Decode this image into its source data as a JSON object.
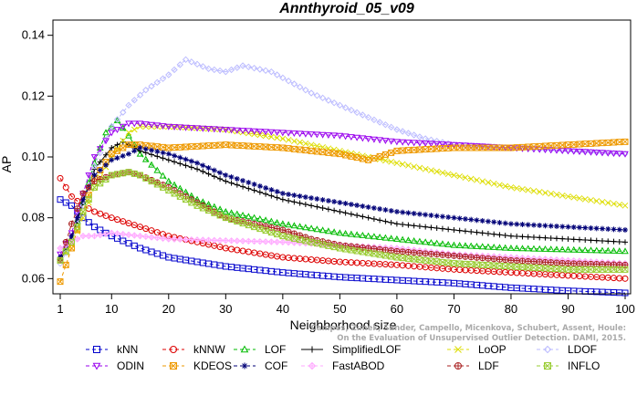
{
  "chart_data": {
    "type": "line",
    "title": "Annthyroid_05_v09",
    "xlabel": "Neighborhood size",
    "ylabel": "AP",
    "xlim": [
      1,
      100
    ],
    "ylim": [
      0.055,
      0.145
    ],
    "x_ticks": [
      1,
      10,
      20,
      30,
      40,
      50,
      60,
      70,
      80,
      90,
      100
    ],
    "y_ticks": [
      0.06,
      0.08,
      0.1,
      0.12,
      0.14
    ],
    "watermark": [
      "Campos, Zimek, Sander, Campello, Micenkova, Schubert, Assent, Houle:",
      "On the Evaluation of Unsupervised Outlier Detection. DAMI, 2015."
    ],
    "series": [
      {
        "name": "kNN",
        "color": "#0000cc",
        "marker": "square",
        "dash": "4,3",
        "points": [
          [
            1,
            0.086
          ],
          [
            3,
            0.084
          ],
          [
            5,
            0.08
          ],
          [
            7,
            0.077
          ],
          [
            10,
            0.074
          ],
          [
            15,
            0.07
          ],
          [
            20,
            0.067
          ],
          [
            30,
            0.064
          ],
          [
            40,
            0.062
          ],
          [
            50,
            0.0605
          ],
          [
            60,
            0.0595
          ],
          [
            70,
            0.0585
          ],
          [
            80,
            0.057
          ],
          [
            90,
            0.056
          ],
          [
            100,
            0.0553
          ]
        ]
      },
      {
        "name": "kNNW",
        "color": "#dd0000",
        "marker": "circle",
        "dash": "4,3",
        "points": [
          [
            1,
            0.093
          ],
          [
            3,
            0.087
          ],
          [
            5,
            0.084
          ],
          [
            7,
            0.082
          ],
          [
            10,
            0.08
          ],
          [
            15,
            0.077
          ],
          [
            20,
            0.074
          ],
          [
            30,
            0.07
          ],
          [
            40,
            0.067
          ],
          [
            50,
            0.0655
          ],
          [
            60,
            0.0645
          ],
          [
            70,
            0.063
          ],
          [
            80,
            0.062
          ],
          [
            90,
            0.061
          ],
          [
            100,
            0.06
          ]
        ]
      },
      {
        "name": "LOF",
        "color": "#00bb00",
        "marker": "triangle",
        "dash": "4,3",
        "points": [
          [
            1,
            0.067
          ],
          [
            3,
            0.073
          ],
          [
            5,
            0.085
          ],
          [
            7,
            0.098
          ],
          [
            9,
            0.108
          ],
          [
            11,
            0.112
          ],
          [
            13,
            0.107
          ],
          [
            15,
            0.101
          ],
          [
            20,
            0.092
          ],
          [
            25,
            0.086
          ],
          [
            30,
            0.082
          ],
          [
            40,
            0.078
          ],
          [
            50,
            0.075
          ],
          [
            60,
            0.073
          ],
          [
            70,
            0.071
          ],
          [
            80,
            0.07
          ],
          [
            90,
            0.0695
          ],
          [
            100,
            0.069
          ]
        ]
      },
      {
        "name": "SimplifiedLOF",
        "color": "#000000",
        "marker": "plus",
        "dash": "",
        "points": [
          [
            1,
            0.066
          ],
          [
            3,
            0.073
          ],
          [
            5,
            0.085
          ],
          [
            7,
            0.096
          ],
          [
            10,
            0.103
          ],
          [
            12,
            0.105
          ],
          [
            15,
            0.102
          ],
          [
            20,
            0.099
          ],
          [
            25,
            0.096
          ],
          [
            30,
            0.092
          ],
          [
            40,
            0.086
          ],
          [
            50,
            0.082
          ],
          [
            60,
            0.078
          ],
          [
            70,
            0.076
          ],
          [
            80,
            0.074
          ],
          [
            90,
            0.073
          ],
          [
            100,
            0.072
          ]
        ]
      },
      {
        "name": "LoOP",
        "color": "#dddd00",
        "marker": "x",
        "dash": "4,3",
        "points": [
          [
            1,
            0.066
          ],
          [
            3,
            0.071
          ],
          [
            5,
            0.08
          ],
          [
            7,
            0.09
          ],
          [
            10,
            0.1
          ],
          [
            13,
            0.108
          ],
          [
            15,
            0.11
          ],
          [
            20,
            0.11
          ],
          [
            30,
            0.109
          ],
          [
            40,
            0.106
          ],
          [
            50,
            0.102
          ],
          [
            60,
            0.098
          ],
          [
            70,
            0.094
          ],
          [
            80,
            0.09
          ],
          [
            90,
            0.087
          ],
          [
            100,
            0.084
          ]
        ]
      },
      {
        "name": "LDOF",
        "color": "#bbbbff",
        "marker": "diamond",
        "dash": "4,3",
        "points": [
          [
            1,
            0.065
          ],
          [
            3,
            0.072
          ],
          [
            5,
            0.084
          ],
          [
            7,
            0.097
          ],
          [
            10,
            0.11
          ],
          [
            13,
            0.117
          ],
          [
            16,
            0.122
          ],
          [
            20,
            0.127
          ],
          [
            23,
            0.132
          ],
          [
            27,
            0.129
          ],
          [
            30,
            0.128
          ],
          [
            33,
            0.13
          ],
          [
            38,
            0.128
          ],
          [
            45,
            0.121
          ],
          [
            50,
            0.117
          ],
          [
            55,
            0.113
          ],
          [
            60,
            0.109
          ],
          [
            65,
            0.106
          ],
          [
            70,
            0.104
          ],
          [
            80,
            0.103
          ],
          [
            90,
            0.102
          ],
          [
            100,
            0.101
          ]
        ]
      },
      {
        "name": "ODIN",
        "color": "#9900ee",
        "marker": "triangle-down",
        "dash": "4,3",
        "points": [
          [
            1,
            0.068
          ],
          [
            3,
            0.075
          ],
          [
            5,
            0.088
          ],
          [
            7,
            0.1
          ],
          [
            10,
            0.108
          ],
          [
            13,
            0.111
          ],
          [
            15,
            0.111
          ],
          [
            20,
            0.11
          ],
          [
            30,
            0.109
          ],
          [
            40,
            0.108
          ],
          [
            50,
            0.107
          ],
          [
            60,
            0.105
          ],
          [
            70,
            0.104
          ],
          [
            80,
            0.103
          ],
          [
            90,
            0.102
          ],
          [
            100,
            0.101
          ]
        ]
      },
      {
        "name": "KDEOS",
        "color": "#ee9900",
        "marker": "square-x",
        "dash": "4,3",
        "points": [
          [
            1,
            0.059
          ],
          [
            3,
            0.07
          ],
          [
            5,
            0.082
          ],
          [
            7,
            0.093
          ],
          [
            10,
            0.101
          ],
          [
            13,
            0.104
          ],
          [
            15,
            0.104
          ],
          [
            20,
            0.103
          ],
          [
            30,
            0.104
          ],
          [
            40,
            0.103
          ],
          [
            50,
            0.101
          ],
          [
            55,
            0.099
          ],
          [
            60,
            0.102
          ],
          [
            70,
            0.103
          ],
          [
            80,
            0.103
          ],
          [
            90,
            0.104
          ],
          [
            100,
            0.105
          ]
        ]
      },
      {
        "name": "COF",
        "color": "#000077",
        "marker": "star",
        "dash": "4,3",
        "points": [
          [
            1,
            0.067
          ],
          [
            3,
            0.074
          ],
          [
            5,
            0.086
          ],
          [
            7,
            0.094
          ],
          [
            10,
            0.099
          ],
          [
            13,
            0.101
          ],
          [
            15,
            0.103
          ],
          [
            20,
            0.101
          ],
          [
            25,
            0.098
          ],
          [
            30,
            0.094
          ],
          [
            40,
            0.088
          ],
          [
            50,
            0.085
          ],
          [
            60,
            0.082
          ],
          [
            70,
            0.08
          ],
          [
            80,
            0.078
          ],
          [
            90,
            0.077
          ],
          [
            100,
            0.076
          ]
        ]
      },
      {
        "name": "FastABOD",
        "color": "#ffaaff",
        "marker": "diamond-plus",
        "dash": "4,3",
        "points": [
          [
            1,
            0.07
          ],
          [
            3,
            0.072
          ],
          [
            5,
            0.074
          ],
          [
            7,
            0.074
          ],
          [
            10,
            0.075
          ],
          [
            15,
            0.074
          ],
          [
            20,
            0.073
          ],
          [
            30,
            0.0725
          ],
          [
            40,
            0.072
          ],
          [
            50,
            0.071
          ],
          [
            60,
            0.07
          ],
          [
            70,
            0.068
          ],
          [
            80,
            0.067
          ],
          [
            90,
            0.066
          ],
          [
            100,
            0.065
          ]
        ]
      },
      {
        "name": "LDF",
        "color": "#aa2222",
        "marker": "circle-plus",
        "dash": "4,3",
        "points": [
          [
            1,
            0.066
          ],
          [
            3,
            0.078
          ],
          [
            5,
            0.088
          ],
          [
            7,
            0.092
          ],
          [
            10,
            0.094
          ],
          [
            13,
            0.095
          ],
          [
            15,
            0.094
          ],
          [
            20,
            0.09
          ],
          [
            25,
            0.085
          ],
          [
            30,
            0.08
          ],
          [
            40,
            0.076
          ],
          [
            45,
            0.073
          ],
          [
            50,
            0.071
          ],
          [
            55,
            0.07
          ],
          [
            60,
            0.069
          ],
          [
            70,
            0.0675
          ],
          [
            80,
            0.066
          ],
          [
            90,
            0.065
          ],
          [
            100,
            0.0645
          ]
        ]
      },
      {
        "name": "INFLO",
        "color": "#99cc33",
        "marker": "square-x",
        "dash": "4,3",
        "points": [
          [
            1,
            0.066
          ],
          [
            3,
            0.072
          ],
          [
            5,
            0.082
          ],
          [
            7,
            0.09
          ],
          [
            10,
            0.094
          ],
          [
            13,
            0.095
          ],
          [
            15,
            0.094
          ],
          [
            20,
            0.089
          ],
          [
            25,
            0.084
          ],
          [
            30,
            0.08
          ],
          [
            40,
            0.074
          ],
          [
            50,
            0.07
          ],
          [
            60,
            0.067
          ],
          [
            70,
            0.065
          ],
          [
            80,
            0.064
          ],
          [
            90,
            0.063
          ],
          [
            100,
            0.063
          ]
        ]
      }
    ],
    "legend": {
      "placement": "bottom",
      "rows": [
        [
          "kNN",
          "kNNW",
          "LOF",
          "SimplifiedLOF",
          "LoOP",
          "LDOF"
        ],
        [
          "ODIN",
          "KDEOS",
          "COF",
          "FastABOD",
          "LDF",
          "INFLO"
        ]
      ]
    }
  }
}
